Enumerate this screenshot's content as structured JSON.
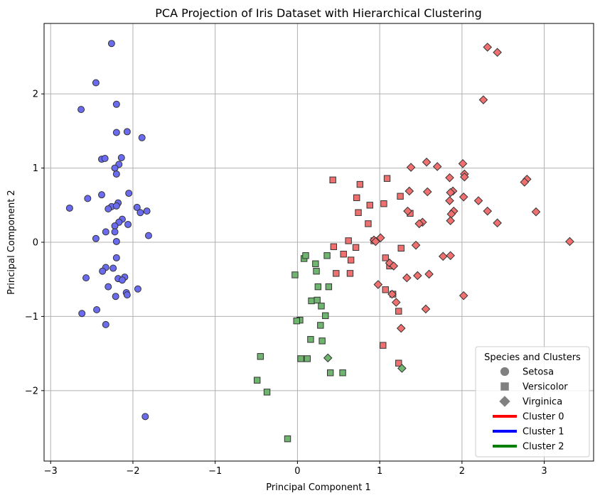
{
  "chart_data": {
    "type": "scatter",
    "title": "PCA Projection of Iris Dataset with Hierarchical Clustering",
    "xlabel": "Principal Component 1",
    "ylabel": "Principal Component 2",
    "xlim": [
      -3.08,
      3.6
    ],
    "ylim": [
      -2.95,
      2.95
    ],
    "xticks": [
      -3,
      -2,
      -1,
      0,
      1,
      2,
      3
    ],
    "yticks": [
      -2,
      -1,
      0,
      1,
      2
    ],
    "grid": true,
    "legend": {
      "title": "Species and Clusters",
      "placement": "bottom-right",
      "markers": [
        {
          "label": "Setosa",
          "marker": "circle"
        },
        {
          "label": "Versicolor",
          "marker": "square"
        },
        {
          "label": "Virginica",
          "marker": "diamond"
        }
      ],
      "lines": [
        {
          "label": "Cluster 0",
          "color": "#ff0000"
        },
        {
          "label": "Cluster 1",
          "color": "#0000ff"
        },
        {
          "label": "Cluster 2",
          "color": "#008000"
        }
      ]
    },
    "colors": {
      "cluster_0": "#f07070",
      "cluster_1": "#6b6bef",
      "cluster_2": "#6fb56f",
      "legend_marker": "#808080"
    },
    "series": [
      {
        "species": "Setosa",
        "cluster": 1,
        "marker": "circle",
        "points": [
          [
            -2.26,
            2.68
          ],
          [
            -2.45,
            2.15
          ],
          [
            -2.2,
            1.86
          ],
          [
            -2.63,
            1.79
          ],
          [
            -2.07,
            1.49
          ],
          [
            -2.2,
            1.48
          ],
          [
            -1.89,
            1.41
          ],
          [
            -2.14,
            1.14
          ],
          [
            -2.38,
            1.12
          ],
          [
            -2.34,
            1.13
          ],
          [
            -2.17,
            1.05
          ],
          [
            -2.22,
            1.0
          ],
          [
            -2.2,
            0.92
          ],
          [
            -2.05,
            0.66
          ],
          [
            -2.38,
            0.64
          ],
          [
            -2.55,
            0.59
          ],
          [
            -2.18,
            0.53
          ],
          [
            -2.26,
            0.48
          ],
          [
            -2.2,
            0.49
          ],
          [
            -2.3,
            0.45
          ],
          [
            -2.77,
            0.46
          ],
          [
            -1.95,
            0.47
          ],
          [
            -1.83,
            0.42
          ],
          [
            -1.91,
            0.4
          ],
          [
            -2.13,
            0.31
          ],
          [
            -2.17,
            0.27
          ],
          [
            -2.06,
            0.24
          ],
          [
            -2.22,
            0.22
          ],
          [
            -2.22,
            0.14
          ],
          [
            -2.33,
            0.14
          ],
          [
            -1.81,
            0.09
          ],
          [
            -2.45,
            0.05
          ],
          [
            -2.2,
            0.01
          ],
          [
            -2.2,
            -0.21
          ],
          [
            -2.33,
            -0.34
          ],
          [
            -2.24,
            -0.35
          ],
          [
            -2.37,
            -0.39
          ],
          [
            -2.1,
            -0.47
          ],
          [
            -2.18,
            -0.49
          ],
          [
            -2.13,
            -0.51
          ],
          [
            -2.57,
            -0.48
          ],
          [
            -2.3,
            -0.6
          ],
          [
            -1.94,
            -0.63
          ],
          [
            -2.08,
            -0.68
          ],
          [
            -2.07,
            -0.71
          ],
          [
            -2.21,
            -0.73
          ],
          [
            -2.44,
            -0.91
          ],
          [
            -2.62,
            -0.96
          ],
          [
            -2.33,
            -1.11
          ],
          [
            -1.85,
            -2.35
          ]
        ]
      },
      {
        "species": "Versicolor",
        "cluster": 0,
        "marker": "square",
        "points": [
          [
            0.43,
            0.84
          ],
          [
            1.09,
            0.86
          ],
          [
            0.76,
            0.78
          ],
          [
            0.72,
            0.6
          ],
          [
            1.25,
            0.62
          ],
          [
            0.74,
            0.4
          ],
          [
            0.88,
            0.5
          ],
          [
            1.05,
            0.52
          ],
          [
            1.37,
            0.39
          ],
          [
            0.86,
            0.25
          ],
          [
            0.62,
            0.02
          ],
          [
            0.93,
            0.02
          ],
          [
            0.71,
            -0.07
          ],
          [
            0.44,
            -0.06
          ],
          [
            1.26,
            -0.08
          ],
          [
            0.56,
            -0.16
          ],
          [
            1.07,
            -0.21
          ],
          [
            0.65,
            -0.24
          ],
          [
            0.47,
            -0.42
          ],
          [
            0.64,
            -0.42
          ],
          [
            1.12,
            -0.32
          ],
          [
            1.16,
            -0.7
          ],
          [
            1.07,
            -0.64
          ],
          [
            1.23,
            -0.93
          ],
          [
            1.04,
            -1.39
          ],
          [
            1.23,
            -1.63
          ]
        ]
      },
      {
        "species": "Versicolor",
        "cluster": 2,
        "marker": "square",
        "points": [
          [
            0.08,
            -0.22
          ],
          [
            0.1,
            -0.18
          ],
          [
            0.36,
            -0.18
          ],
          [
            0.22,
            -0.29
          ],
          [
            0.23,
            -0.39
          ],
          [
            -0.03,
            -0.44
          ],
          [
            0.25,
            -0.6
          ],
          [
            0.38,
            -0.6
          ],
          [
            0.17,
            -0.79
          ],
          [
            0.24,
            -0.78
          ],
          [
            0.29,
            -0.86
          ],
          [
            0.34,
            -0.99
          ],
          [
            0.03,
            -1.05
          ],
          [
            -0.01,
            -1.06
          ],
          [
            0.28,
            -1.12
          ],
          [
            0.3,
            -1.33
          ],
          [
            0.16,
            -1.31
          ],
          [
            0.04,
            -1.57
          ],
          [
            0.12,
            -1.57
          ],
          [
            -0.45,
            -1.54
          ],
          [
            0.4,
            -1.76
          ],
          [
            0.55,
            -1.76
          ],
          [
            -0.49,
            -1.86
          ],
          [
            -0.37,
            -2.02
          ],
          [
            -0.12,
            -2.65
          ]
        ]
      },
      {
        "species": "Virginica",
        "cluster": 0,
        "marker": "diamond",
        "points": [
          [
            2.31,
            2.63
          ],
          [
            2.43,
            2.56
          ],
          [
            2.26,
            1.92
          ],
          [
            2.01,
            1.06
          ],
          [
            1.57,
            1.08
          ],
          [
            1.7,
            1.02
          ],
          [
            1.38,
            1.01
          ],
          [
            2.03,
            0.92
          ],
          [
            2.03,
            0.88
          ],
          [
            1.85,
            0.87
          ],
          [
            2.79,
            0.85
          ],
          [
            2.76,
            0.81
          ],
          [
            1.36,
            0.69
          ],
          [
            1.58,
            0.68
          ],
          [
            1.89,
            0.69
          ],
          [
            1.86,
            0.67
          ],
          [
            2.02,
            0.61
          ],
          [
            1.85,
            0.56
          ],
          [
            2.2,
            0.56
          ],
          [
            1.9,
            0.42
          ],
          [
            1.87,
            0.38
          ],
          [
            2.9,
            0.41
          ],
          [
            1.34,
            0.42
          ],
          [
            2.31,
            0.42
          ],
          [
            1.86,
            0.29
          ],
          [
            1.52,
            0.27
          ],
          [
            1.48,
            0.25
          ],
          [
            2.43,
            0.26
          ],
          [
            0.93,
            0.03
          ],
          [
            0.95,
            0.01
          ],
          [
            1.01,
            0.06
          ],
          [
            3.31,
            0.01
          ],
          [
            1.44,
            -0.04
          ],
          [
            1.77,
            -0.19
          ],
          [
            1.86,
            -0.18
          ],
          [
            1.12,
            -0.28
          ],
          [
            1.17,
            -0.32
          ],
          [
            1.6,
            -0.43
          ],
          [
            1.46,
            -0.45
          ],
          [
            1.33,
            -0.48
          ],
          [
            0.98,
            -0.57
          ],
          [
            2.02,
            -0.72
          ],
          [
            1.15,
            -0.7
          ],
          [
            1.2,
            -0.81
          ],
          [
            1.56,
            -0.9
          ],
          [
            1.26,
            -1.16
          ]
        ]
      },
      {
        "species": "Virginica",
        "cluster": 2,
        "marker": "diamond",
        "points": [
          [
            0.37,
            -1.56
          ],
          [
            1.27,
            -1.7
          ]
        ]
      }
    ]
  }
}
